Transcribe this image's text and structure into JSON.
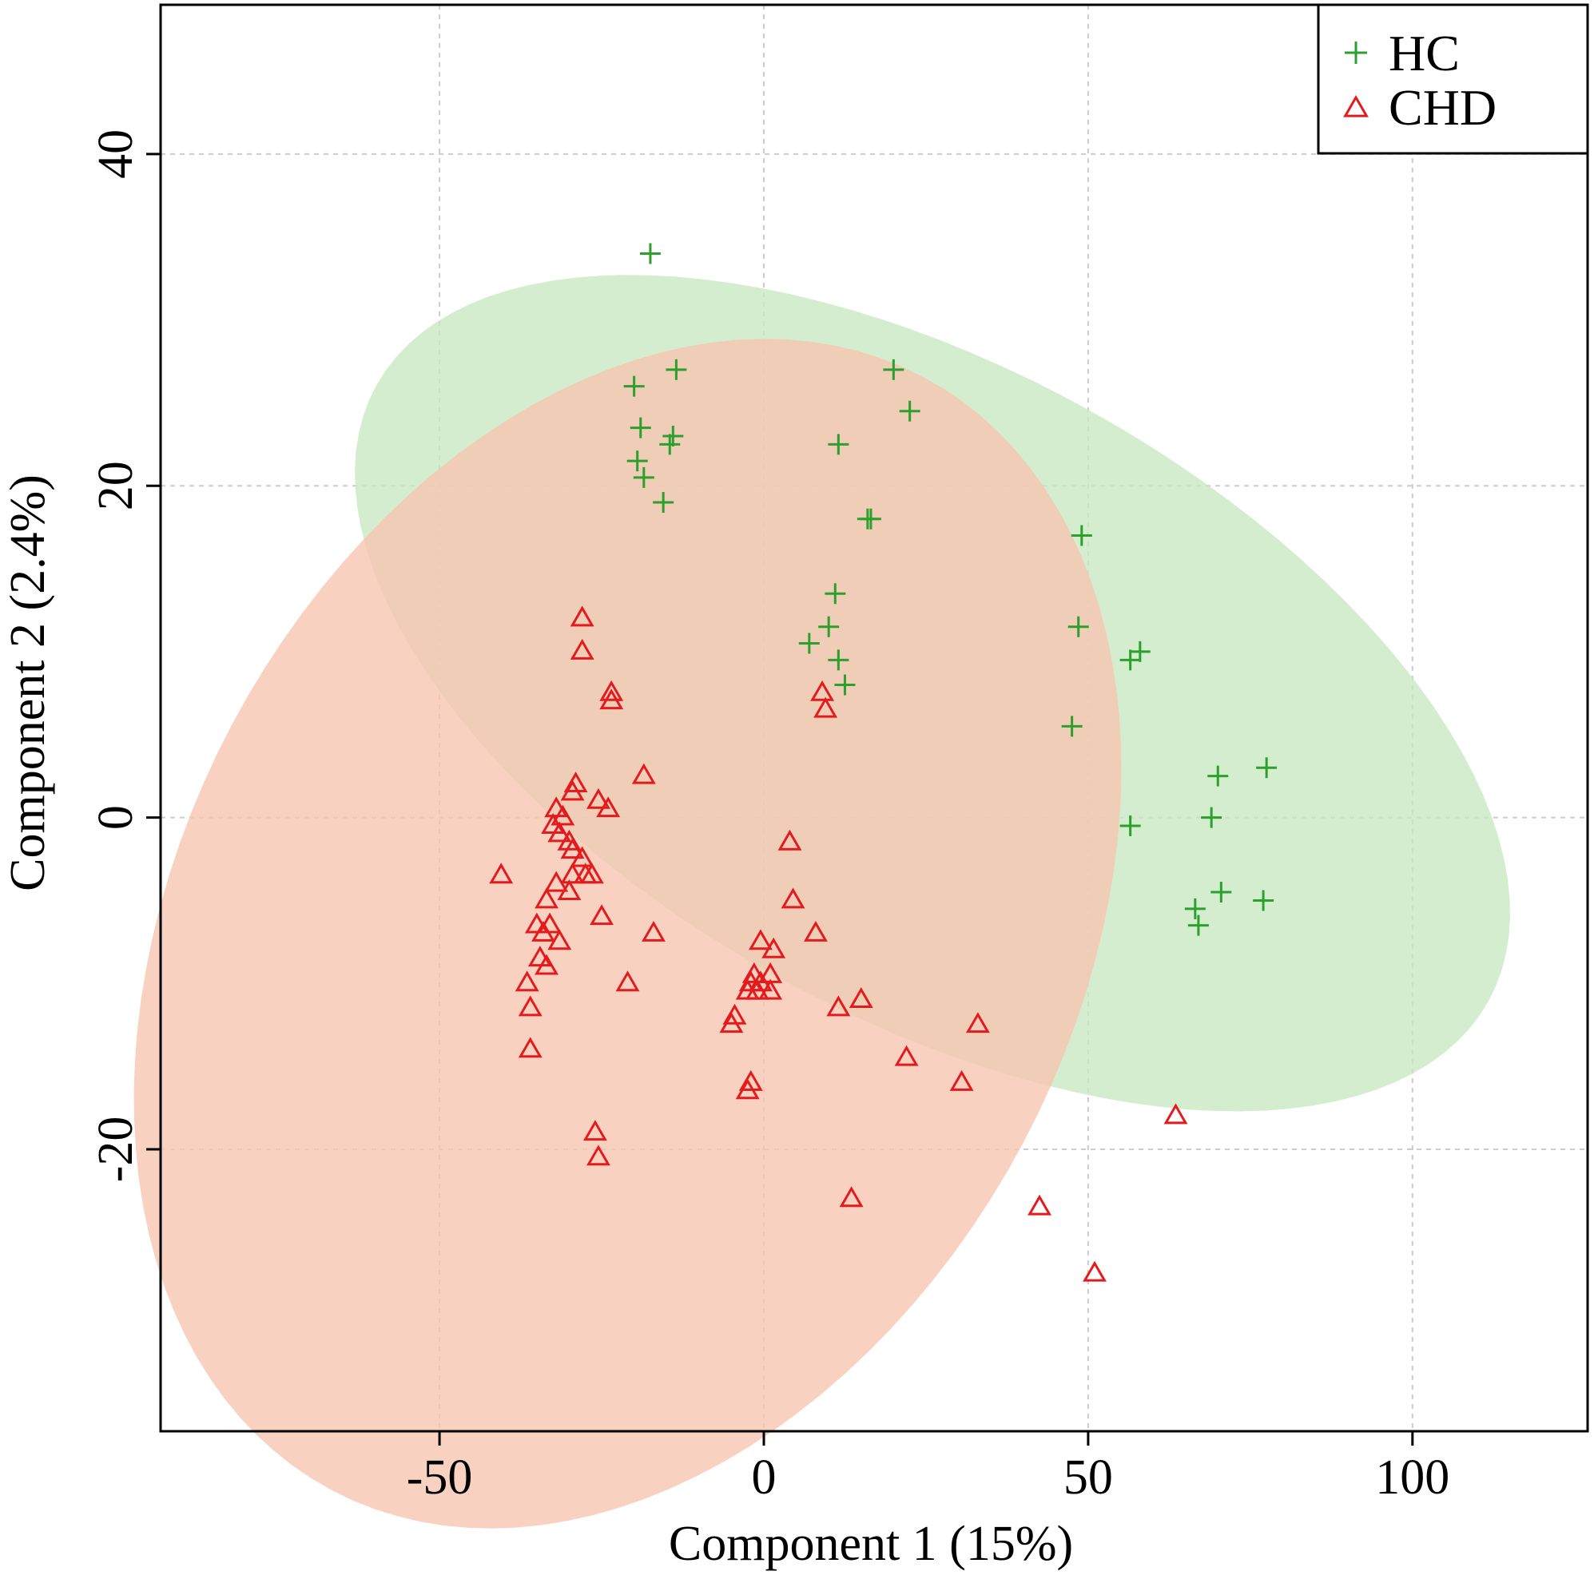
{
  "chart_data": {
    "type": "scatter",
    "title": "",
    "xlabel": "Component 1 (15%)",
    "ylabel": "Component 2 (2.4%)",
    "xlim": [
      -93,
      127
    ],
    "ylim": [
      -37,
      49
    ],
    "xticks": [
      -50,
      0,
      50,
      100
    ],
    "yticks": [
      -20,
      0,
      20,
      40
    ],
    "xtick_labels": [
      "-50",
      "0",
      "50",
      "100"
    ],
    "ytick_labels": [
      "-20",
      "0",
      "20",
      "40"
    ],
    "grid": true,
    "legend_position": "top-right",
    "series": [
      {
        "name": "HC",
        "marker": "plus",
        "color": "#2ca02c",
        "ellipse_fill": "#c9e8c2",
        "ellipse": {
          "center": [
            26,
            7.5
          ],
          "semi_major": 98,
          "semi_minor": 19.5,
          "angle_deg": -29
        },
        "points": [
          [
            -17.5,
            34
          ],
          [
            -13.5,
            27
          ],
          [
            -20,
            26
          ],
          [
            -19,
            23.5
          ],
          [
            -14,
            23
          ],
          [
            -14.5,
            22.5
          ],
          [
            -19.5,
            21.5
          ],
          [
            -18.5,
            20.5
          ],
          [
            -15.5,
            19
          ],
          [
            20,
            27
          ],
          [
            22.5,
            24.5
          ],
          [
            11.5,
            22.5
          ],
          [
            16,
            18
          ],
          [
            16.5,
            18
          ],
          [
            49,
            17
          ],
          [
            11,
            13.5
          ],
          [
            10,
            11.5
          ],
          [
            7,
            10.5
          ],
          [
            11.5,
            9.5
          ],
          [
            12.5,
            8
          ],
          [
            48.5,
            11.5
          ],
          [
            56.5,
            9.5
          ],
          [
            58,
            10
          ],
          [
            47.5,
            5.5
          ],
          [
            70,
            2.5
          ],
          [
            77.5,
            3
          ],
          [
            69,
            0
          ],
          [
            56.5,
            -0.5
          ],
          [
            66.5,
            -5.5
          ],
          [
            70.5,
            -4.5
          ],
          [
            77,
            -5
          ],
          [
            67,
            -6.5
          ]
        ]
      },
      {
        "name": "CHD",
        "marker": "triangle",
        "color": "#e41a1c",
        "ellipse_fill": "#f6c4b0",
        "ellipse": {
          "center": [
            -21,
            -7
          ],
          "semi_major": 69,
          "semi_minor": 38,
          "angle_deg": -28
        },
        "points": [
          [
            -28,
            12
          ],
          [
            -28,
            10
          ],
          [
            -23.5,
            7.5
          ],
          [
            -23.5,
            7
          ],
          [
            -18.5,
            2.5
          ],
          [
            -29,
            2
          ],
          [
            -29.5,
            1.5
          ],
          [
            -32,
            0.5
          ],
          [
            -25.5,
            1
          ],
          [
            -24,
            0.5
          ],
          [
            -31,
            0
          ],
          [
            -32.5,
            -0.5
          ],
          [
            -31.5,
            -1
          ],
          [
            -30,
            -1.5
          ],
          [
            -29.5,
            -2
          ],
          [
            -28,
            -2.5
          ],
          [
            -27.5,
            -3.5
          ],
          [
            -26.5,
            -3.5
          ],
          [
            -29.5,
            -3.5
          ],
          [
            -32,
            -4
          ],
          [
            -30,
            -4.5
          ],
          [
            -33.5,
            -5
          ],
          [
            -40.5,
            -3.5
          ],
          [
            -25,
            -6
          ],
          [
            -35,
            -6.5
          ],
          [
            -33,
            -6.5
          ],
          [
            -34,
            -7
          ],
          [
            -31.5,
            -7.5
          ],
          [
            -17,
            -7
          ],
          [
            -34.5,
            -8.5
          ],
          [
            -33.5,
            -9
          ],
          [
            -36.5,
            -10
          ],
          [
            -21,
            -10
          ],
          [
            -36,
            -11.5
          ],
          [
            -36,
            -14
          ],
          [
            4,
            -1.5
          ],
          [
            4.5,
            -5
          ],
          [
            8,
            -7
          ],
          [
            -0.5,
            -7.5
          ],
          [
            1.5,
            -8
          ],
          [
            1,
            -9.5
          ],
          [
            -1.5,
            -9.5
          ],
          [
            -2,
            -10
          ],
          [
            -0.5,
            -10
          ],
          [
            -2.5,
            -10.5
          ],
          [
            -1,
            -10.5
          ],
          [
            1,
            -10.5
          ],
          [
            -4.5,
            -12
          ],
          [
            -5,
            -12.5
          ],
          [
            11.5,
            -11.5
          ],
          [
            15,
            -11
          ],
          [
            33,
            -12.5
          ],
          [
            22,
            -14.5
          ],
          [
            -2,
            -16
          ],
          [
            -2.5,
            -16.5
          ],
          [
            30.5,
            -16
          ],
          [
            -26,
            -19
          ],
          [
            -25.5,
            -20.5
          ],
          [
            13.5,
            -23
          ],
          [
            42.5,
            -23.5
          ],
          [
            63.5,
            -18
          ],
          [
            51,
            -27.5
          ],
          [
            9,
            7.5
          ],
          [
            9.5,
            6.5
          ]
        ]
      }
    ]
  }
}
